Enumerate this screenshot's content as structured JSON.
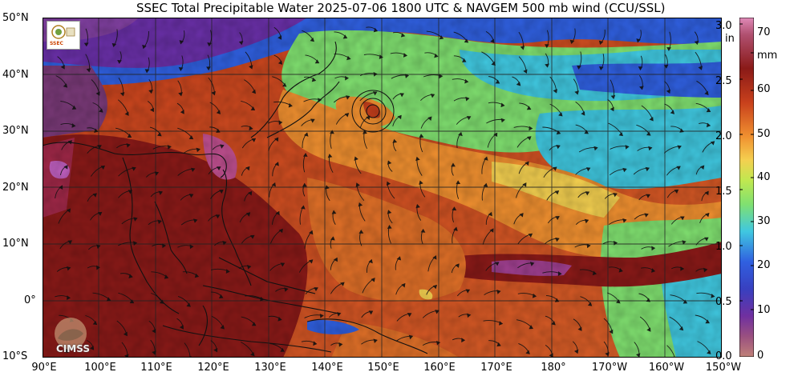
{
  "title": "SSEC Total Precipitable Water  2025-07-06 1800 UTC & NAVGEM 500 mb wind (CCU/SSL)",
  "lat_labels": [
    "50°N",
    "40°N",
    "30°N",
    "20°N",
    "10°N",
    "0°",
    "10°S"
  ],
  "lon_labels": [
    "90°E",
    "100°E",
    "110°E",
    "120°E",
    "130°E",
    "140°E",
    "150°E",
    "160°E",
    "170°E",
    "180°",
    "170°W",
    "160°W",
    "150°W"
  ],
  "colorbar": {
    "unit_in": "in",
    "unit_mm": "mm",
    "in_ticks": [
      "3.0",
      "2.5",
      "2.0",
      "1.5",
      "1.0",
      "0.5",
      "0.0"
    ],
    "mm_ticks": [
      "70",
      "60",
      "50",
      "40",
      "30",
      "20",
      "10",
      "0"
    ],
    "colors": {
      "top": "#e08ab8",
      "dark_red": "#8a1a18",
      "red": "#c8401c",
      "orange": "#f09030",
      "yellow": "#f4d050",
      "green": "#80e070",
      "cyan": "#40c8e0",
      "blue": "#3060e0",
      "purple": "#7030a0",
      "bottom": "#c08078"
    }
  },
  "logos": {
    "cimss": "CIMSS",
    "ssec": "SSEC"
  },
  "icons": [
    "ssec-logo-icon",
    "cimss-logo-icon"
  ]
}
